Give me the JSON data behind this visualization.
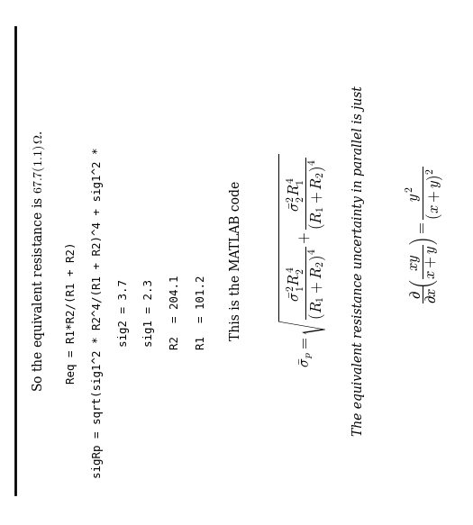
{
  "bg_color": "#ffffff",
  "text_color": "#000000",
  "fig_width": 5.25,
  "fig_height": 5.83,
  "partial_deriv_formula": "$\\dfrac{\\partial}{\\partial x}\\!\\left(\\dfrac{xy}{x+y}\\right) = \\dfrac{y^2}{(x+y)^2}$",
  "text1": "The equivalent resistance uncertainty in parallel is just",
  "sigma_formula": "$\\bar{\\sigma}_p = \\sqrt{\\dfrac{\\bar{\\sigma}_1^2 R_2^4}{(R_1+R_2)^4}+\\dfrac{\\bar{\\sigma}_2^2 R_1^4}{(R_1+R_2)^4}}$",
  "text2": "This is the MATLAB code",
  "code_line1": "R1  = 101.2",
  "code_line2": "R2  = 204.1",
  "code_line3": "sig1 = 2.3",
  "code_line4": "sig2 = 3.7",
  "code_line5a": "sigRp = sqrt(sig1^2 * R2^4/(R1 + R2)^4 + sig1^2 *",
  "code_line5b": "Req = R1*R2/(R1 + R2)",
  "text3_part1": "So the equivalent resistance is ",
  "text3_math": "$67.7(1.1)\\,\\Omega$.",
  "rotation": 90
}
